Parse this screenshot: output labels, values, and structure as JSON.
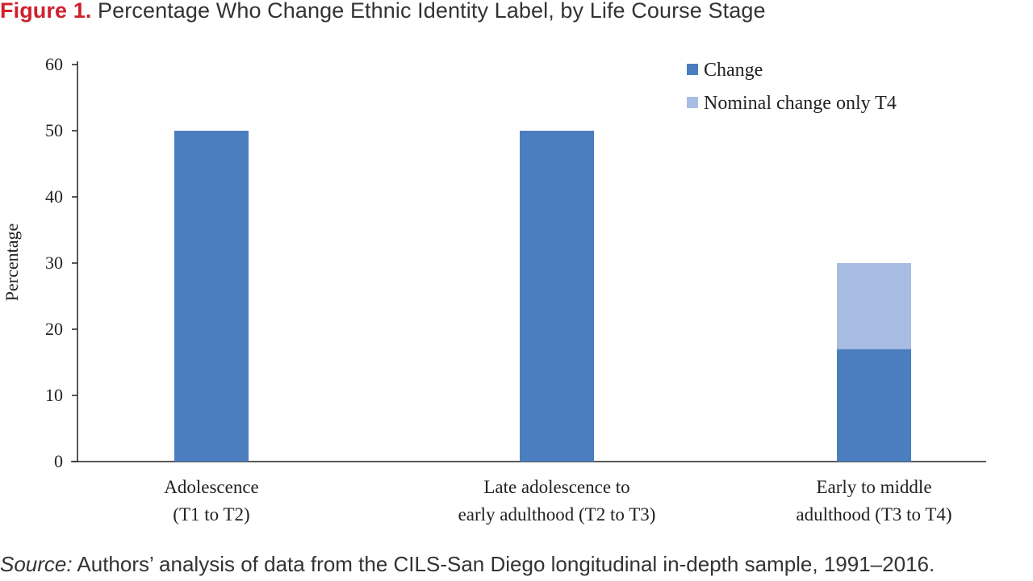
{
  "figure": {
    "label": "Figure 1.",
    "title": "Percentage Who Change Ethnic Identity Label, by Life Course Stage"
  },
  "source": {
    "label": "Source:",
    "text": "Authors’ analysis of data from the CILS-San Diego longitudinal in-depth sample, 1991–2016."
  },
  "colors": {
    "change": "#4a7ebf",
    "nominal": "#a9bde2",
    "axis": "#222222",
    "text": "#222222"
  },
  "chart_data": {
    "type": "bar",
    "stacked": true,
    "categories": [
      [
        "Adolescence",
        "(T1 to T2)"
      ],
      [
        "Late adolescence to",
        "early adulthood (T2 to T3)"
      ],
      [
        "Early to middle",
        "adulthood (T3 to T4)"
      ]
    ],
    "series": [
      {
        "name": "Change",
        "values": [
          50,
          50,
          17
        ]
      },
      {
        "name": "Nominal change only T4",
        "values": [
          0,
          0,
          13
        ]
      }
    ],
    "ylabel": "Percentage",
    "ylim": [
      0,
      60
    ],
    "yticks": [
      0,
      10,
      20,
      30,
      40,
      50,
      60
    ],
    "grid": false,
    "legend": "top-right"
  }
}
